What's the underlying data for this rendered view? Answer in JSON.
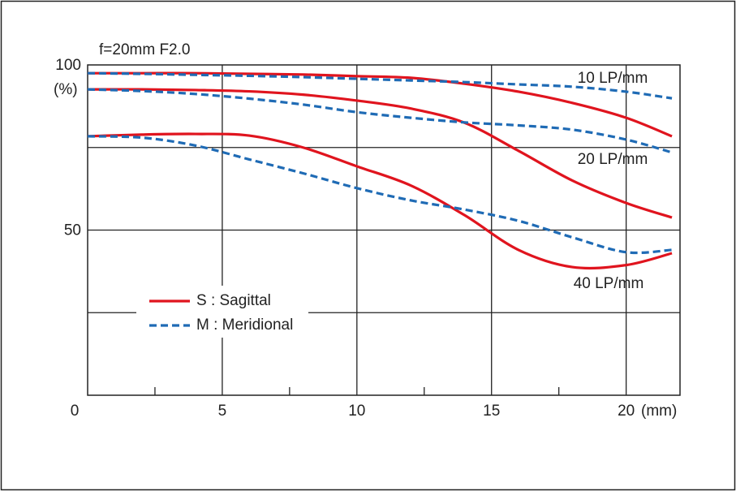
{
  "chart_data": {
    "type": "line",
    "title": "f=20mm  F2.0",
    "y_unit": "(%)",
    "x_unit": "(mm)",
    "x": [
      0,
      2,
      4,
      6,
      8,
      10,
      12,
      14,
      16,
      18,
      20,
      21.7
    ],
    "xlim": [
      0,
      22
    ],
    "ylim": [
      0,
      100
    ],
    "xticks": [
      0,
      5,
      10,
      15,
      20
    ],
    "xminor": [
      2.5,
      7.5,
      12.5,
      17.5
    ],
    "yticks": [
      50,
      100
    ],
    "ygrid": [
      25,
      50,
      75
    ],
    "legend": [
      {
        "name": "S : Sagittal",
        "color": "#e0141e",
        "dashed": false
      },
      {
        "name": "M : Meridional",
        "color": "#1f6bb5",
        "dashed": true
      }
    ],
    "series": [
      {
        "name": "10 LP/mm",
        "sagittal": [
          97.5,
          97.5,
          97.5,
          97.3,
          97.1,
          96.6,
          96.1,
          94.3,
          91.9,
          88.5,
          84.0,
          78.4
        ],
        "meridional": [
          97.5,
          97.3,
          97.0,
          96.7,
          96.3,
          95.8,
          95.3,
          94.8,
          94.1,
          93.4,
          91.9,
          89.9
        ]
      },
      {
        "name": "20 LP/mm",
        "sagittal": [
          92.6,
          92.6,
          92.4,
          92.0,
          91.0,
          89.2,
          86.8,
          82.5,
          74.0,
          65.0,
          58.2,
          53.8
        ],
        "meridional": [
          92.6,
          92.1,
          91.2,
          89.8,
          88.0,
          85.7,
          84.0,
          82.6,
          81.7,
          80.4,
          77.4,
          73.5
        ]
      },
      {
        "name": "40 LP/mm",
        "sagittal": [
          78.4,
          78.9,
          79.1,
          78.6,
          75.0,
          69.3,
          63.5,
          54.5,
          44.0,
          38.8,
          39.4,
          43.0
        ],
        "meridional": [
          78.4,
          78.0,
          75.6,
          71.4,
          67.2,
          62.7,
          59.0,
          56.2,
          52.8,
          47.8,
          43.3,
          44.0
        ]
      }
    ]
  }
}
